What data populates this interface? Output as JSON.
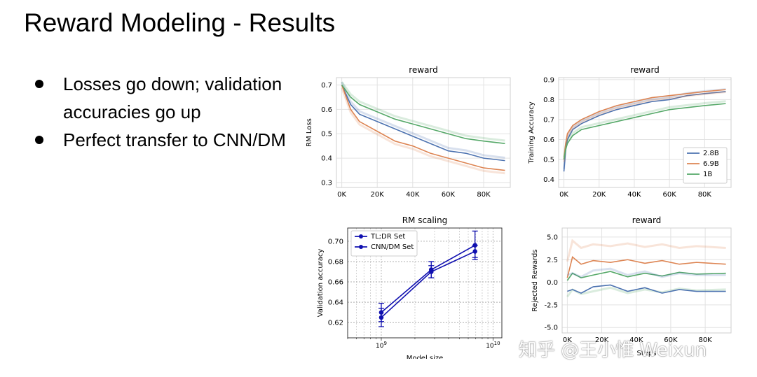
{
  "slide": {
    "title": "Reward Modeling - Results",
    "bullets": [
      "Losses go down; validation accuracies go up",
      "Perfect transfer to CNN/DM"
    ]
  },
  "watermark": "知乎 @王小惟 Weixun",
  "colors": {
    "2.8B": "#4c72b0",
    "6.9B": "#dd8452",
    "1B": "#55a868",
    "rm_scaling": "#1010b0"
  },
  "chart_data": [
    {
      "type": "line",
      "title": "reward",
      "xlabel": "",
      "ylabel": "RM Loss",
      "xlim": [
        -3000,
        95000
      ],
      "ylim": [
        0.28,
        0.73
      ],
      "xticks": [
        0,
        20000,
        40000,
        60000,
        80000
      ],
      "xtick_labels": [
        "0K",
        "20K",
        "40K",
        "60K",
        "80K"
      ],
      "yticks": [
        0.3,
        0.4,
        0.5,
        0.6,
        0.7
      ],
      "ytick_labels": [
        "0.3",
        "0.4",
        "0.5",
        "0.6",
        "0.7"
      ],
      "grid": true,
      "series": [
        {
          "key": "2.8B",
          "x": [
            0,
            5000,
            10000,
            20000,
            30000,
            40000,
            50000,
            60000,
            70000,
            80000,
            92000
          ],
          "values": [
            0.7,
            0.62,
            0.58,
            0.55,
            0.52,
            0.49,
            0.46,
            0.43,
            0.42,
            0.4,
            0.39
          ]
        },
        {
          "key": "6.9B",
          "x": [
            0,
            5000,
            10000,
            20000,
            30000,
            40000,
            50000,
            60000,
            70000,
            80000,
            92000
          ],
          "values": [
            0.7,
            0.6,
            0.55,
            0.51,
            0.47,
            0.45,
            0.42,
            0.4,
            0.38,
            0.36,
            0.35
          ]
        },
        {
          "key": "1B",
          "x": [
            0,
            5000,
            10000,
            20000,
            30000,
            40000,
            50000,
            60000,
            70000,
            80000,
            92000
          ],
          "values": [
            0.7,
            0.65,
            0.62,
            0.59,
            0.56,
            0.54,
            0.52,
            0.5,
            0.48,
            0.47,
            0.46
          ]
        }
      ]
    },
    {
      "type": "line",
      "title": "reward",
      "xlabel": "",
      "ylabel": "Training Accuracy",
      "xlim": [
        -3000,
        95000
      ],
      "ylim": [
        0.36,
        0.91
      ],
      "xticks": [
        0,
        20000,
        40000,
        60000,
        80000
      ],
      "xtick_labels": [
        "0K",
        "20K",
        "40K",
        "60K",
        "80K"
      ],
      "yticks": [
        0.4,
        0.5,
        0.6,
        0.7,
        0.8,
        0.9
      ],
      "ytick_labels": [
        "0.4",
        "0.5",
        "0.6",
        "0.7",
        "0.8",
        "0.9"
      ],
      "grid": true,
      "legend": {
        "position": "lower-right",
        "entries": [
          "2.8B",
          "6.9B",
          "1B"
        ]
      },
      "series": [
        {
          "key": "2.8B",
          "name": "2.8B",
          "x": [
            0,
            1000,
            2000,
            5000,
            10000,
            20000,
            30000,
            40000,
            50000,
            60000,
            70000,
            80000,
            92000
          ],
          "values": [
            0.44,
            0.55,
            0.6,
            0.65,
            0.68,
            0.72,
            0.75,
            0.77,
            0.79,
            0.8,
            0.82,
            0.83,
            0.84
          ]
        },
        {
          "key": "6.9B",
          "name": "6.9B",
          "x": [
            0,
            1000,
            2000,
            5000,
            10000,
            20000,
            30000,
            40000,
            50000,
            60000,
            70000,
            80000,
            92000
          ],
          "values": [
            0.5,
            0.58,
            0.63,
            0.67,
            0.7,
            0.74,
            0.77,
            0.79,
            0.81,
            0.82,
            0.83,
            0.84,
            0.85
          ]
        },
        {
          "key": "1B",
          "name": "1B",
          "x": [
            0,
            1000,
            2000,
            5000,
            10000,
            20000,
            30000,
            40000,
            50000,
            60000,
            70000,
            80000,
            92000
          ],
          "values": [
            0.5,
            0.55,
            0.58,
            0.62,
            0.65,
            0.67,
            0.69,
            0.71,
            0.73,
            0.75,
            0.76,
            0.77,
            0.78
          ]
        }
      ]
    },
    {
      "type": "line",
      "title": "RM scaling",
      "xlabel": "Model size",
      "ylabel": "Validation accuracy",
      "xscale": "log",
      "xlim": [
        500000000,
        12000000000
      ],
      "ylim": [
        0.605,
        0.713
      ],
      "xticks": [
        1000000000,
        10000000000
      ],
      "yticks": [
        0.62,
        0.64,
        0.66,
        0.68,
        0.7
      ],
      "ytick_labels": [
        "0.62",
        "0.64",
        "0.66",
        "0.68",
        "0.70"
      ],
      "grid": true,
      "legend": {
        "position": "upper-left",
        "entries": [
          "TL;DR Set",
          "CNN/DM Set"
        ]
      },
      "series": [
        {
          "name": "TL;DR Set",
          "x": [
            1000000000,
            2800000000,
            6900000000
          ],
          "values": [
            0.63,
            0.672,
            0.696
          ],
          "errors": [
            0.009,
            0.008,
            0.014
          ]
        },
        {
          "name": "CNN/DM Set",
          "x": [
            1000000000,
            2800000000,
            6900000000
          ],
          "values": [
            0.625,
            0.67,
            0.69
          ],
          "errors": [
            0.009,
            0.006,
            0.006
          ]
        }
      ]
    },
    {
      "type": "line",
      "title": "reward",
      "xlabel": "Steps",
      "ylabel": "Rejected Rewards",
      "xlim": [
        -3000,
        95000
      ],
      "ylim": [
        -5.6,
        6.0
      ],
      "xticks": [
        0,
        20000,
        40000,
        60000,
        80000
      ],
      "xtick_labels": [
        "0K",
        "20K",
        "40K",
        "60K",
        "80K"
      ],
      "yticks": [
        -5.0,
        -2.5,
        0.0,
        2.5,
        5.0
      ],
      "ytick_labels": [
        "-5.0",
        "-2.5",
        "0.0",
        "2.5",
        "5.0"
      ],
      "grid": true,
      "series": [
        {
          "key": "6.9B",
          "x": [
            0,
            3000,
            8000,
            15000,
            25000,
            35000,
            45000,
            55000,
            65000,
            75000,
            92000
          ],
          "values": [
            0.5,
            2.8,
            2.0,
            2.4,
            2.2,
            2.5,
            2.1,
            2.4,
            2.0,
            2.2,
            2.0
          ]
        },
        {
          "key": "1B",
          "x": [
            0,
            3000,
            8000,
            15000,
            25000,
            35000,
            45000,
            55000,
            65000,
            75000,
            92000
          ],
          "values": [
            0.2,
            1.0,
            0.5,
            0.8,
            1.2,
            0.6,
            1.0,
            0.7,
            1.1,
            0.9,
            1.0
          ]
        },
        {
          "key": "2.8B",
          "x": [
            0,
            3000,
            8000,
            15000,
            25000,
            35000,
            45000,
            55000,
            65000,
            75000,
            92000
          ],
          "values": [
            -1.0,
            -0.8,
            -1.2,
            -0.5,
            -0.3,
            -1.0,
            -0.6,
            -1.2,
            -0.8,
            -1.0,
            -1.0
          ]
        }
      ]
    }
  ]
}
